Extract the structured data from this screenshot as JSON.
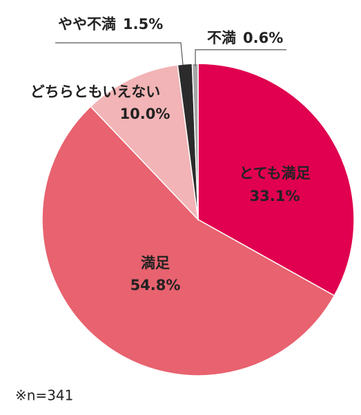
{
  "chart_data": {
    "type": "pie",
    "categories": [
      "とても満足",
      "満足",
      "どちらともいえない",
      "やや不満",
      "不満"
    ],
    "values": [
      33.1,
      54.8,
      10.0,
      1.5,
      0.6
    ],
    "value_labels": [
      "33.1%",
      "54.8%",
      "10.0%",
      "1.5%",
      "0.6%"
    ],
    "colors": [
      "#e0004f",
      "#e8626f",
      "#f2b4b6",
      "#2b2b2b",
      "#a6a6a6"
    ],
    "note": "※n=341"
  }
}
